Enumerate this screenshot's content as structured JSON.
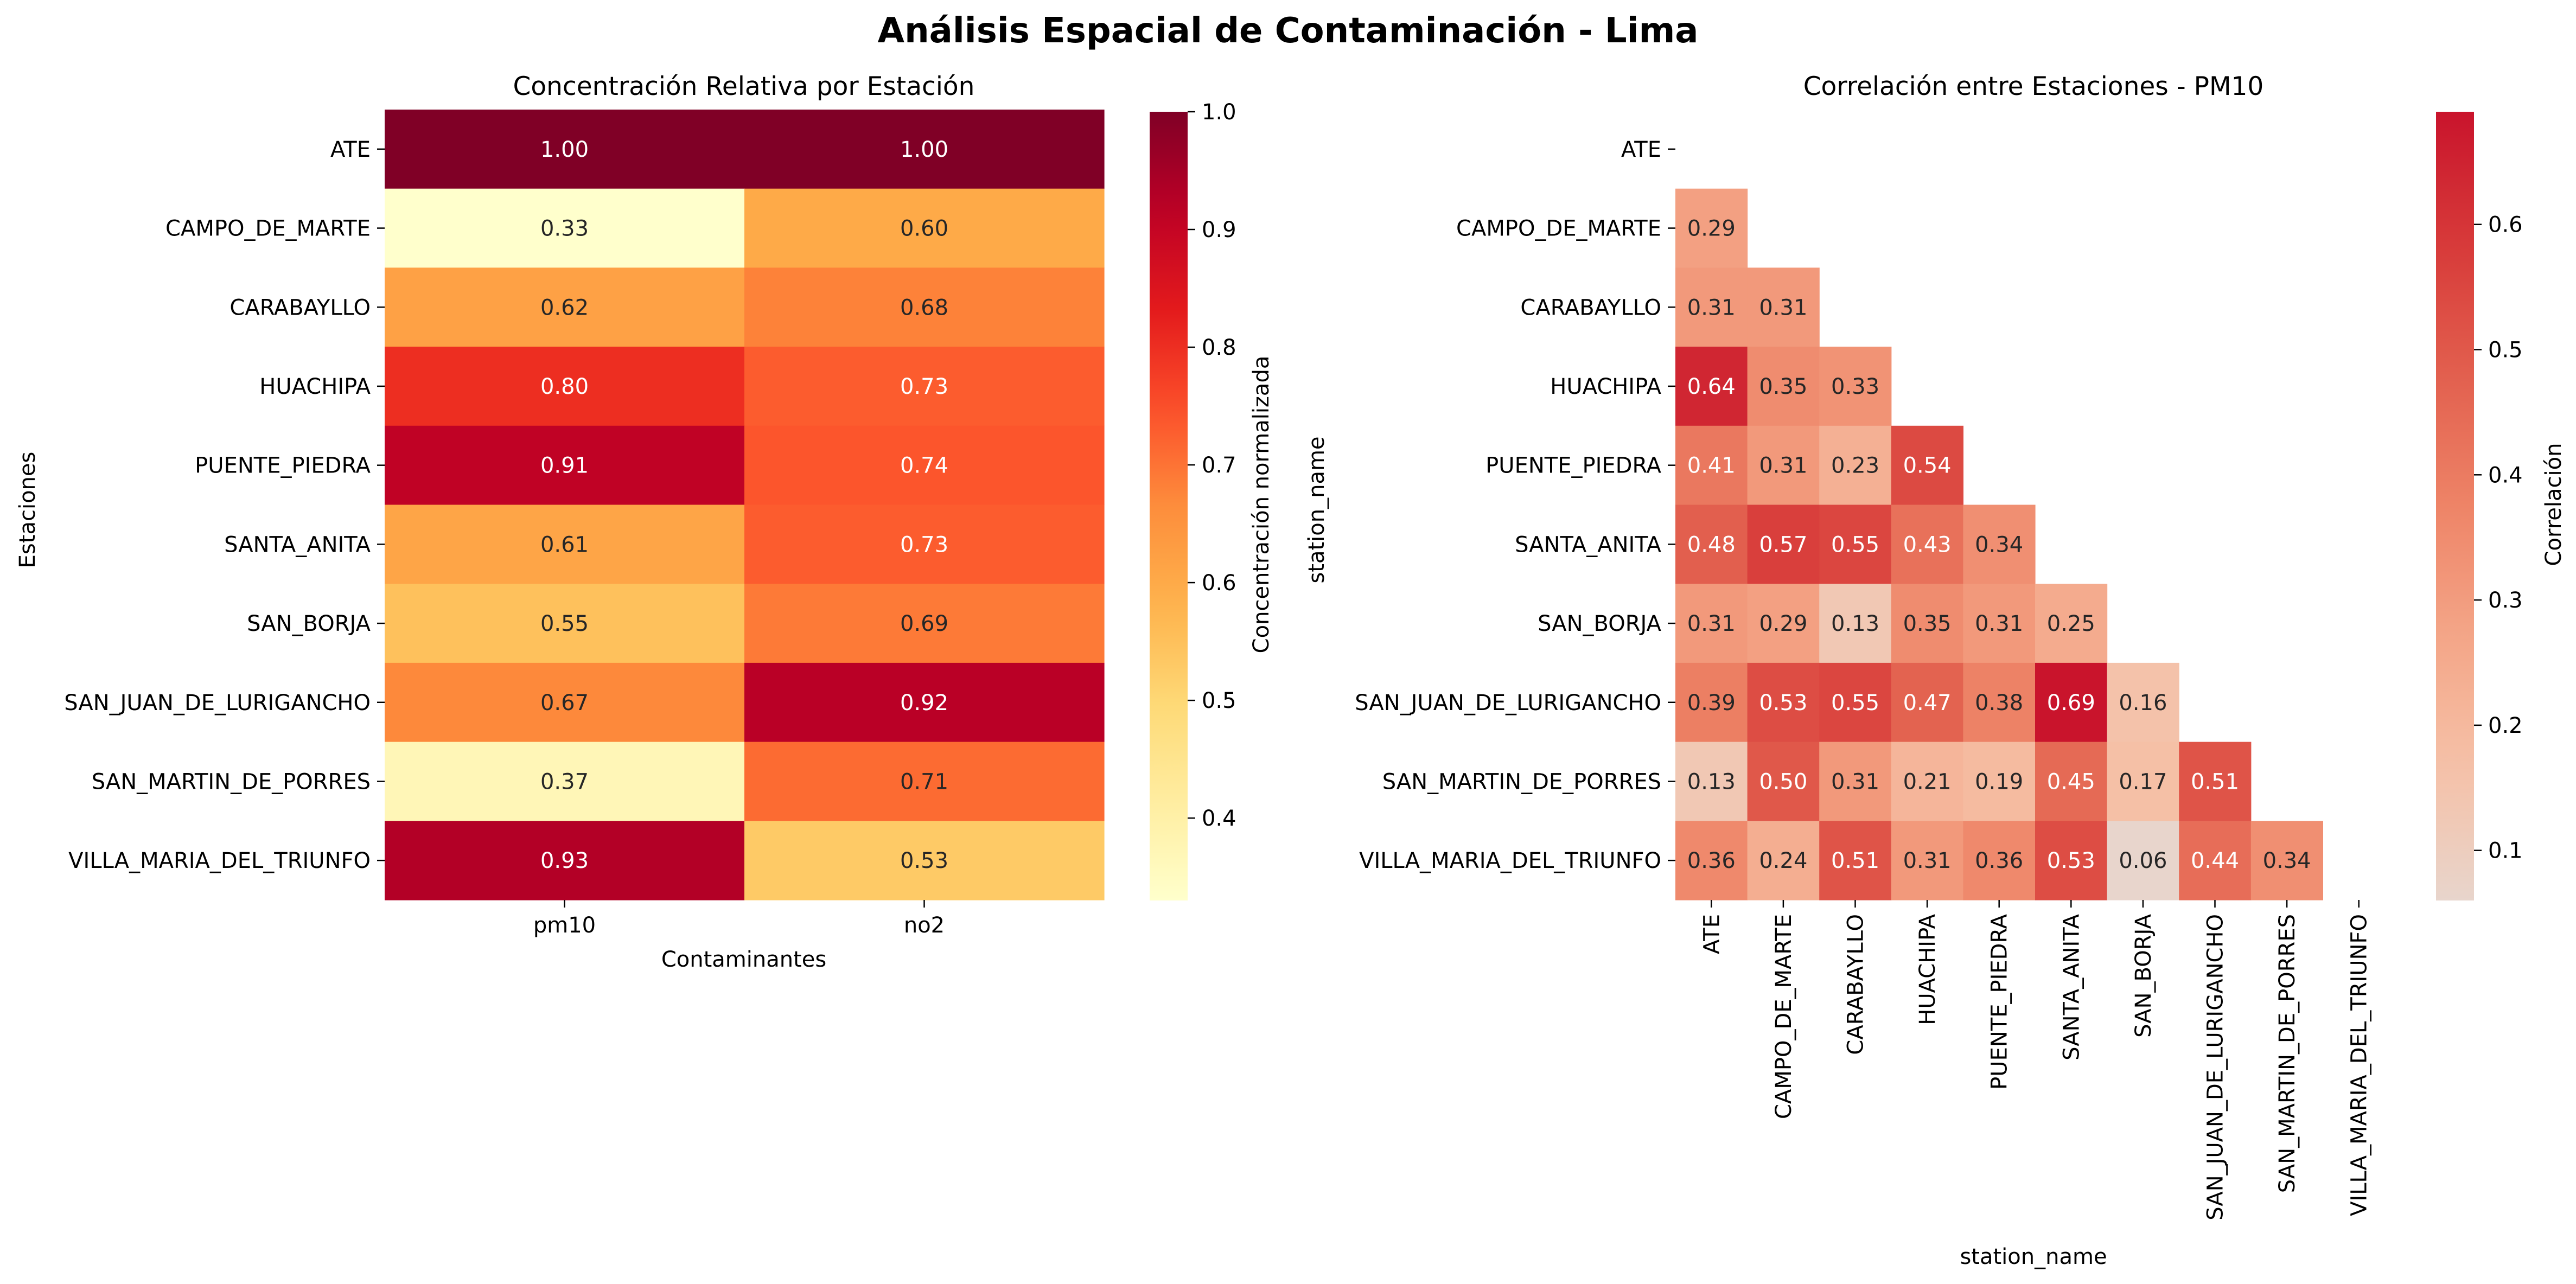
{
  "suptitle": "Análisis Espacial de Contaminación - Lima",
  "stations": [
    "ATE",
    "CAMPO_DE_MARTE",
    "CARABAYLLO",
    "HUACHIPA",
    "PUENTE_PIEDRA",
    "SANTA_ANITA",
    "SAN_BORJA",
    "SAN_JUAN_DE_LURIGANCHO",
    "SAN_MARTIN_DE_PORRES",
    "VILLA_MARIA_DEL_TRIUNFO"
  ],
  "chart_data": [
    {
      "type": "heatmap",
      "title": "Concentración Relativa por Estación",
      "xlabel": "Contaminantes",
      "ylabel": "Estaciones",
      "x_categories": [
        "pm10",
        "no2"
      ],
      "values": [
        [
          1.0,
          1.0
        ],
        [
          0.33,
          0.6
        ],
        [
          0.62,
          0.68
        ],
        [
          0.8,
          0.73
        ],
        [
          0.91,
          0.74
        ],
        [
          0.61,
          0.73
        ],
        [
          0.55,
          0.69
        ],
        [
          0.67,
          0.92
        ],
        [
          0.37,
          0.71
        ],
        [
          0.93,
          0.53
        ]
      ],
      "colorbar": {
        "label": "Concentración normalizada",
        "range": [
          0.33,
          1.0
        ],
        "ticks": [
          "0.4",
          "0.5",
          "0.6",
          "0.7",
          "0.8",
          "0.9",
          "1.0"
        ],
        "colormap": "YlOrRd"
      }
    },
    {
      "type": "heatmap",
      "title": "Correlación entre Estaciones - PM10",
      "xlabel": "station_name",
      "ylabel": "station_name",
      "mask": "upper triangle including diagonal",
      "values": [
        [],
        [
          0.29
        ],
        [
          0.31,
          0.31
        ],
        [
          0.64,
          0.35,
          0.33
        ],
        [
          0.41,
          0.31,
          0.23,
          0.54
        ],
        [
          0.48,
          0.57,
          0.55,
          0.43,
          0.34
        ],
        [
          0.31,
          0.29,
          0.13,
          0.35,
          0.31,
          0.25
        ],
        [
          0.39,
          0.53,
          0.55,
          0.47,
          0.38,
          0.69,
          0.16
        ],
        [
          0.13,
          0.5,
          0.31,
          0.21,
          0.19,
          0.45,
          0.17,
          0.51
        ],
        [
          0.36,
          0.24,
          0.51,
          0.31,
          0.36,
          0.53,
          0.06,
          0.44,
          0.34
        ]
      ],
      "colorbar": {
        "label": "Correlación",
        "range": [
          0.06,
          0.69
        ],
        "ticks": [
          "0.1",
          "0.2",
          "0.3",
          "0.4",
          "0.5",
          "0.6"
        ],
        "colormap": "coolwarm-upper"
      }
    }
  ]
}
